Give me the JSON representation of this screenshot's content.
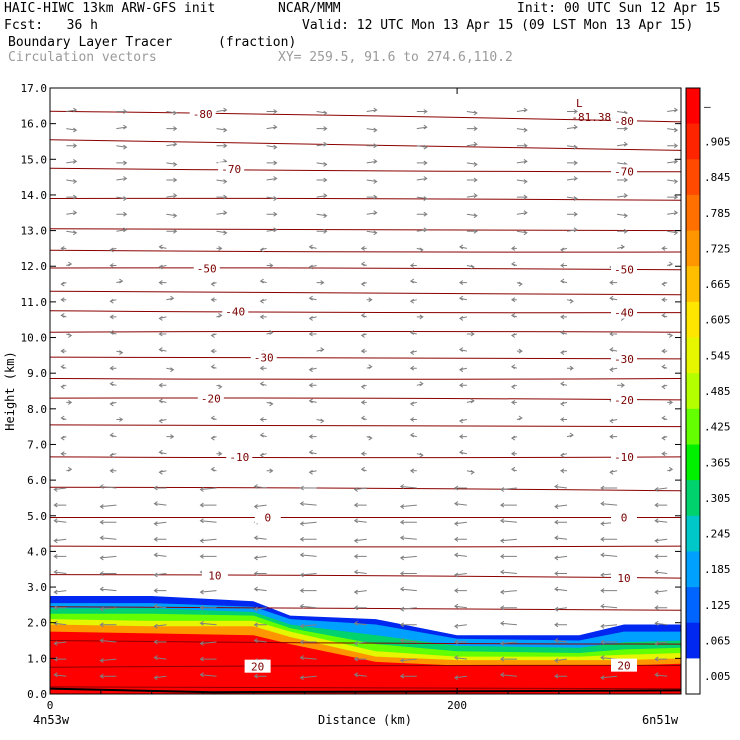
{
  "header": {
    "model": "HAIC-HIWC 13km ARW-GFS init",
    "org": "NCAR/MMM",
    "init": "Init: 00 UTC Sun 12 Apr 15",
    "fcst": "Fcst:   36 h",
    "valid": "Valid: 12 UTC Mon 13 Apr 15 (09 LST Mon 13 Apr 15)",
    "field": "Boundary Layer Tracer",
    "units": "(fraction)",
    "vectors": "Circulation vectors",
    "xy": "XY= 259.5, 91.6 to 274.6,110.2"
  },
  "chart_data": {
    "type": "heatmap",
    "title": "Boundary Layer Tracer",
    "units": "(fraction)",
    "xlabel": "Distance (km)",
    "ylabel": "Height (km)",
    "xlim": [
      0,
      310
    ],
    "ylim": [
      0,
      17
    ],
    "x_ticks": [
      {
        "value": 0,
        "label": "0"
      },
      {
        "value": 200,
        "label": "200"
      }
    ],
    "x_end_labels": {
      "left": "4n53w",
      "right": "6n51w"
    },
    "y_ticks": [
      "0.0",
      "1.0",
      "2.0",
      "3.0",
      "4.0",
      "5.0",
      "6.0",
      "7.0",
      "8.0",
      "9.0",
      "10.0",
      "11.0",
      "12.0",
      "13.0",
      "14.0",
      "15.0",
      "16.0",
      "17.0"
    ],
    "colorbar": {
      "labels": [
        "–",
        ".905",
        ".845",
        ".785",
        ".725",
        ".665",
        ".605",
        ".545",
        ".485",
        ".425",
        ".365",
        ".305",
        ".245",
        ".185",
        ".125",
        ".065",
        ".005"
      ],
      "colors": [
        "#ff0000",
        "#ff2400",
        "#ff4a00",
        "#ff7000",
        "#ff9600",
        "#ffbe00",
        "#ffe600",
        "#e6f500",
        "#b4ff00",
        "#64ff00",
        "#00f000",
        "#00d26e",
        "#00c8c8",
        "#00a0ff",
        "#0064ff",
        "#0028f0",
        "#ffffff"
      ]
    },
    "tracer_top": {
      "x": [
        0,
        50,
        100,
        118,
        160,
        200,
        260,
        282,
        310
      ],
      "height": [
        2.75,
        2.75,
        2.6,
        2.2,
        2.1,
        1.65,
        1.65,
        1.95,
        1.95
      ]
    },
    "tracer_layers": [
      {
        "value": 0.005,
        "top": [
          2.75,
          2.75,
          2.6,
          2.2,
          2.1,
          1.65,
          1.65,
          1.95,
          1.95
        ]
      },
      {
        "value": 0.065,
        "top": [
          2.55,
          2.55,
          2.45,
          2.1,
          1.95,
          1.55,
          1.5,
          1.75,
          1.75
        ]
      },
      {
        "value": 0.185,
        "top": [
          2.4,
          2.4,
          2.3,
          1.95,
          1.65,
          1.35,
          1.3,
          1.45,
          1.5
        ]
      },
      {
        "value": 0.365,
        "top": [
          2.25,
          2.25,
          2.2,
          1.85,
          1.4,
          1.2,
          1.15,
          1.25,
          1.3
        ]
      },
      {
        "value": 0.545,
        "top": [
          2.1,
          2.05,
          2.05,
          1.75,
          1.2,
          1.05,
          1.05,
          1.1,
          1.15
        ]
      },
      {
        "value": 0.725,
        "top": [
          1.95,
          1.9,
          1.9,
          1.6,
          1.05,
          0.95,
          0.95,
          0.95,
          1.0
        ]
      },
      {
        "value": 0.905,
        "top": [
          1.75,
          1.7,
          1.65,
          1.4,
          0.9,
          0.8,
          0.8,
          0.8,
          0.85
        ]
      }
    ],
    "contours": [
      {
        "height_left": 16.35,
        "height_right": 16.05,
        "label": "-80"
      },
      {
        "height_left": 15.55,
        "height_right": 15.25
      },
      {
        "height_left": 14.75,
        "height_right": 14.65,
        "label": "-70"
      },
      {
        "height_left": 13.9,
        "height_right": 13.85
      },
      {
        "height_left": 13.05,
        "height_right": 13.0
      },
      {
        "height_left": 12.45,
        "height_right": 12.4
      },
      {
        "height_left": 11.95,
        "height_right": 11.9,
        "label": "-50"
      },
      {
        "height_left": 11.3,
        "height_right": 11.2
      },
      {
        "height_left": 10.75,
        "height_right": 10.7,
        "label": "-40"
      },
      {
        "height_left": 10.15,
        "height_right": 10.15
      },
      {
        "height_left": 9.45,
        "height_right": 9.4,
        "label": "-30"
      },
      {
        "height_left": 8.85,
        "height_right": 8.85
      },
      {
        "height_left": 8.3,
        "height_right": 8.25,
        "label": "-20"
      },
      {
        "height_left": 7.55,
        "height_right": 7.5
      },
      {
        "height_left": 6.65,
        "height_right": 6.65,
        "label": "-10"
      },
      {
        "height_left": 5.8,
        "height_right": 5.7
      },
      {
        "height_left": 4.95,
        "height_right": 4.95,
        "label": "0"
      },
      {
        "height_left": 4.15,
        "height_right": 4.15
      },
      {
        "height_left": 3.35,
        "height_right": 3.25,
        "label": "10"
      },
      {
        "height_left": 2.45,
        "height_right": 2.35
      },
      {
        "height_left": 1.5,
        "height_right": 1.4
      },
      {
        "height_left": 0.75,
        "height_right": 0.8,
        "label": "20"
      },
      {
        "height_left": 0.2,
        "height_right": 0.15
      }
    ],
    "min_marker": {
      "symbol": "L",
      "value": "-81.38",
      "x": 262,
      "height": 16.3
    },
    "vectors": "Circulation vectors"
  }
}
